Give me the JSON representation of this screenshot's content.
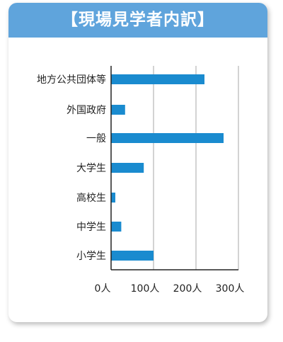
{
  "header": {
    "title": "【現場見学者内訳】"
  },
  "colors": {
    "header": "#5fa4dc",
    "bar": "#1a8bcf",
    "grid": "#a7a7a7",
    "axis": "#222222"
  },
  "chart_data": {
    "type": "bar",
    "orientation": "horizontal",
    "title": "【現場見学者内訳】",
    "categories": [
      "地方公共団体等",
      "外国政府",
      "一般",
      "大学生",
      "高校生",
      "中学生",
      "小学生"
    ],
    "values": [
      220,
      33,
      265,
      77,
      10,
      24,
      100
    ],
    "xlim": [
      0,
      300
    ],
    "xticks": [
      0,
      100,
      200,
      300
    ],
    "xtick_labels": [
      "0人",
      "100人",
      "200人",
      "300人"
    ],
    "grid": true
  }
}
